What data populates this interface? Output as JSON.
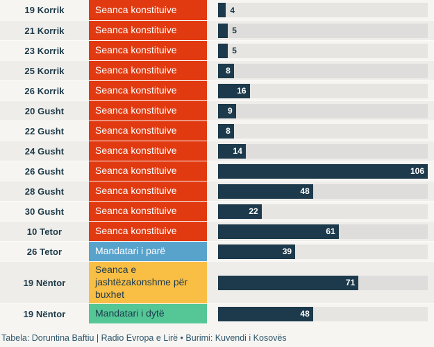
{
  "chart_data": {
    "type": "bar",
    "orientation": "horizontal",
    "max_value": 106,
    "bar_color": "#1C3A4B",
    "palette": {
      "seanca_konstituive": "#E23A10",
      "mandatari_i_pare": "#58A3CC",
      "seanca_buxhet": "#F9BE44",
      "mandatari_i_dyte": "#55C797"
    },
    "rows": [
      {
        "date": "19 Korrik",
        "session": "Seanca konstituive",
        "session_color": "#E23A10",
        "session_text_color": "#FFFFFF",
        "value": 4,
        "label_inside": false,
        "tall": false
      },
      {
        "date": "21 Korrik",
        "session": "Seanca konstituive",
        "session_color": "#E23A10",
        "session_text_color": "#FFFFFF",
        "value": 5,
        "label_inside": false,
        "tall": false
      },
      {
        "date": "23 Korrik",
        "session": "Seanca konstituive",
        "session_color": "#E23A10",
        "session_text_color": "#FFFFFF",
        "value": 5,
        "label_inside": false,
        "tall": false
      },
      {
        "date": "25 Korrik",
        "session": "Seanca konstituive",
        "session_color": "#E23A10",
        "session_text_color": "#FFFFFF",
        "value": 8,
        "label_inside": true,
        "tall": false
      },
      {
        "date": "26 Korrik",
        "session": "Seanca konstituive",
        "session_color": "#E23A10",
        "session_text_color": "#FFFFFF",
        "value": 16,
        "label_inside": true,
        "tall": false
      },
      {
        "date": "20 Gusht",
        "session": "Seanca konstituive",
        "session_color": "#E23A10",
        "session_text_color": "#FFFFFF",
        "value": 9,
        "label_inside": true,
        "tall": false
      },
      {
        "date": "22 Gusht",
        "session": "Seanca konstituive",
        "session_color": "#E23A10",
        "session_text_color": "#FFFFFF",
        "value": 8,
        "label_inside": true,
        "tall": false
      },
      {
        "date": "24 Gusht",
        "session": "Seanca konstituive",
        "session_color": "#E23A10",
        "session_text_color": "#FFFFFF",
        "value": 14,
        "label_inside": true,
        "tall": false
      },
      {
        "date": "26 Gusht",
        "session": "Seanca konstituive",
        "session_color": "#E23A10",
        "session_text_color": "#FFFFFF",
        "value": 106,
        "label_inside": true,
        "tall": false
      },
      {
        "date": "28 Gusht",
        "session": "Seanca konstituive",
        "session_color": "#E23A10",
        "session_text_color": "#FFFFFF",
        "value": 48,
        "label_inside": true,
        "tall": false
      },
      {
        "date": "30 Gusht",
        "session": "Seanca konstituive",
        "session_color": "#E23A10",
        "session_text_color": "#FFFFFF",
        "value": 22,
        "label_inside": true,
        "tall": false
      },
      {
        "date": "10 Tetor",
        "session": "Seanca konstituive",
        "session_color": "#E23A10",
        "session_text_color": "#FFFFFF",
        "value": 61,
        "label_inside": true,
        "tall": false
      },
      {
        "date": "26 Tetor",
        "session": "Mandatari i parë",
        "session_color": "#58A3CC",
        "session_text_color": "#FFFFFF",
        "value": 39,
        "label_inside": true,
        "tall": false
      },
      {
        "date": "19 Nëntor",
        "session": "Seanca e jashtëzakonshme për buxhet",
        "session_color": "#F9BE44",
        "session_text_color": "#1C3A4B",
        "value": 71,
        "label_inside": true,
        "tall": true
      },
      {
        "date": "19 Nëntor",
        "session": "Mandatari i dytë",
        "session_color": "#55C797",
        "session_text_color": "#1C3A4B",
        "value": 48,
        "label_inside": true,
        "tall": false
      }
    ]
  },
  "footer": {
    "credit": "Tabela: Doruntina Baftiu | Radio Evropa e Lirë • Burimi: Kuvendi i Kosovës"
  }
}
